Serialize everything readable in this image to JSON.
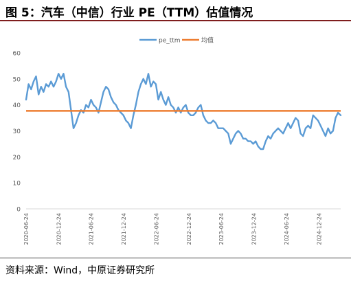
{
  "header": {
    "title": "图 5：汽车（中信）行业 PE（TTM）估值情况"
  },
  "footer": {
    "source": "资料来源：Wind，中原证券研究所"
  },
  "colors": {
    "pe_line": "#5b9bd5",
    "avg_line": "#ed7d31",
    "title_rule": "#7f1d1d",
    "tick_text": "#595959"
  },
  "chart_data": {
    "type": "line",
    "legend": [
      "pe_ttm",
      "均值"
    ],
    "legend_position": "top-center",
    "grid": false,
    "ylim": [
      0,
      60
    ],
    "y_ticks": [
      0,
      10,
      20,
      30,
      40,
      50,
      60
    ],
    "x_range": [
      "2020-06-24",
      "2025-04-24"
    ],
    "x_ticks": [
      "2020-06-24",
      "2020-12-24",
      "2021-06-24",
      "2021-12-24",
      "2022-06-24",
      "2022-12-24",
      "2023-06-24",
      "2023-12-24",
      "2024-06-24",
      "2024-12-24"
    ],
    "average": 37.7,
    "series": [
      {
        "name": "pe_ttm",
        "points": [
          [
            "2020-06-24",
            42
          ],
          [
            "2020-07-08",
            48
          ],
          [
            "2020-07-22",
            46
          ],
          [
            "2020-08-05",
            49
          ],
          [
            "2020-08-19",
            51
          ],
          [
            "2020-09-02",
            44
          ],
          [
            "2020-09-16",
            47
          ],
          [
            "2020-09-30",
            45
          ],
          [
            "2020-10-14",
            48
          ],
          [
            "2020-10-28",
            47
          ],
          [
            "2020-11-11",
            49
          ],
          [
            "2020-11-25",
            47
          ],
          [
            "2020-12-09",
            49
          ],
          [
            "2020-12-23",
            52
          ],
          [
            "2021-01-06",
            50
          ],
          [
            "2021-01-20",
            52
          ],
          [
            "2021-02-03",
            47
          ],
          [
            "2021-02-17",
            45
          ],
          [
            "2021-03-03",
            38
          ],
          [
            "2021-03-17",
            31
          ],
          [
            "2021-03-31",
            33
          ],
          [
            "2021-04-14",
            36
          ],
          [
            "2021-04-28",
            38
          ],
          [
            "2021-05-12",
            37
          ],
          [
            "2021-05-26",
            40
          ],
          [
            "2021-06-09",
            39
          ],
          [
            "2021-06-23",
            42
          ],
          [
            "2021-07-07",
            40
          ],
          [
            "2021-07-21",
            39
          ],
          [
            "2021-08-04",
            37
          ],
          [
            "2021-08-18",
            41
          ],
          [
            "2021-09-01",
            45
          ],
          [
            "2021-09-15",
            47
          ],
          [
            "2021-09-29",
            46
          ],
          [
            "2021-10-13",
            43
          ],
          [
            "2021-10-27",
            41
          ],
          [
            "2021-11-10",
            40
          ],
          [
            "2021-11-24",
            38
          ],
          [
            "2021-12-08",
            37
          ],
          [
            "2021-12-22",
            36
          ],
          [
            "2022-01-05",
            34
          ],
          [
            "2022-01-19",
            33
          ],
          [
            "2022-02-02",
            31
          ],
          [
            "2022-02-16",
            36
          ],
          [
            "2022-03-02",
            40
          ],
          [
            "2022-03-16",
            45
          ],
          [
            "2022-03-30",
            48
          ],
          [
            "2022-04-13",
            50
          ],
          [
            "2022-04-27",
            48
          ],
          [
            "2022-05-11",
            52
          ],
          [
            "2022-05-25",
            47
          ],
          [
            "2022-06-08",
            49
          ],
          [
            "2022-06-22",
            48
          ],
          [
            "2022-07-06",
            42
          ],
          [
            "2022-07-20",
            45
          ],
          [
            "2022-08-03",
            42
          ],
          [
            "2022-08-17",
            40
          ],
          [
            "2022-08-31",
            43
          ],
          [
            "2022-09-14",
            40
          ],
          [
            "2022-09-28",
            39
          ],
          [
            "2022-10-12",
            37
          ],
          [
            "2022-10-26",
            39
          ],
          [
            "2022-11-09",
            37
          ],
          [
            "2022-11-23",
            39
          ],
          [
            "2022-12-07",
            40
          ],
          [
            "2022-12-21",
            37
          ],
          [
            "2023-01-04",
            36
          ],
          [
            "2023-01-18",
            36
          ],
          [
            "2023-02-01",
            37
          ],
          [
            "2023-02-15",
            39
          ],
          [
            "2023-03-01",
            40
          ],
          [
            "2023-03-15",
            36
          ],
          [
            "2023-03-29",
            34
          ],
          [
            "2023-04-12",
            33
          ],
          [
            "2023-04-26",
            33
          ],
          [
            "2023-05-10",
            34
          ],
          [
            "2023-05-24",
            33
          ],
          [
            "2023-06-07",
            31
          ],
          [
            "2023-06-21",
            31
          ],
          [
            "2023-07-05",
            31
          ],
          [
            "2023-07-19",
            30
          ],
          [
            "2023-08-02",
            29
          ],
          [
            "2023-08-16",
            25
          ],
          [
            "2023-08-30",
            27
          ],
          [
            "2023-09-13",
            29
          ],
          [
            "2023-09-27",
            30
          ],
          [
            "2023-10-11",
            29
          ],
          [
            "2023-10-25",
            27
          ],
          [
            "2023-11-08",
            27
          ],
          [
            "2023-11-22",
            26
          ],
          [
            "2023-12-06",
            26
          ],
          [
            "2023-12-20",
            25
          ],
          [
            "2024-01-03",
            26
          ],
          [
            "2024-01-17",
            24
          ],
          [
            "2024-01-31",
            23
          ],
          [
            "2024-02-14",
            23
          ],
          [
            "2024-02-28",
            26
          ],
          [
            "2024-03-13",
            28
          ],
          [
            "2024-03-27",
            27
          ],
          [
            "2024-04-10",
            29
          ],
          [
            "2024-04-24",
            30
          ],
          [
            "2024-05-08",
            31
          ],
          [
            "2024-05-22",
            30
          ],
          [
            "2024-06-05",
            29
          ],
          [
            "2024-06-19",
            31
          ],
          [
            "2024-07-03",
            33
          ],
          [
            "2024-07-17",
            31
          ],
          [
            "2024-07-31",
            33
          ],
          [
            "2024-08-14",
            35
          ],
          [
            "2024-08-28",
            34
          ],
          [
            "2024-09-11",
            29
          ],
          [
            "2024-09-25",
            28
          ],
          [
            "2024-10-09",
            31
          ],
          [
            "2024-10-23",
            32
          ],
          [
            "2024-11-06",
            31
          ],
          [
            "2024-11-20",
            36
          ],
          [
            "2024-12-04",
            35
          ],
          [
            "2024-12-18",
            34
          ],
          [
            "2025-01-01",
            32
          ],
          [
            "2025-01-15",
            30
          ],
          [
            "2025-01-29",
            28
          ],
          [
            "2025-02-12",
            31
          ],
          [
            "2025-02-26",
            29
          ],
          [
            "2025-03-12",
            30
          ],
          [
            "2025-03-26",
            35
          ],
          [
            "2025-04-09",
            37
          ],
          [
            "2025-04-24",
            36
          ]
        ]
      },
      {
        "name": "均值",
        "points": [
          [
            "2020-06-24",
            37.7
          ],
          [
            "2025-04-24",
            37.7
          ]
        ]
      }
    ]
  }
}
